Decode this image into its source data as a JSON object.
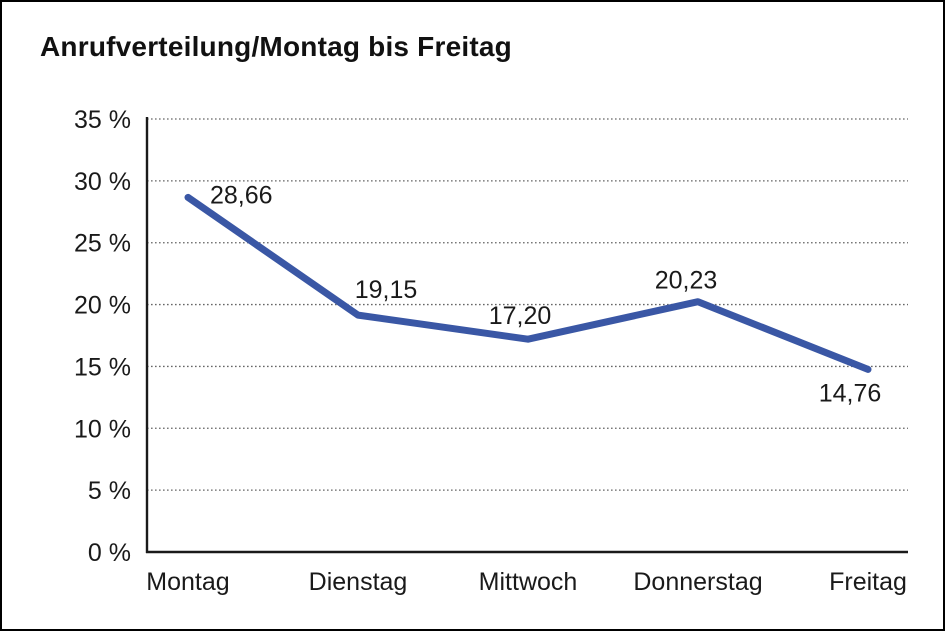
{
  "title": "Anrufverteilung/Montag bis Freitag",
  "colors": {
    "line": "#3A57A5",
    "axis": "#1a1a1a",
    "grid": "#666666",
    "background": "#ffffff",
    "border": "#000000",
    "text": "#1a1a1a"
  },
  "chart_data": {
    "type": "line",
    "title": "Anrufverteilung/Montag bis Freitag",
    "categories": [
      "Montag",
      "Dienstag",
      "Mittwoch",
      "Donnerstag",
      "Freitag"
    ],
    "values": [
      28.66,
      19.15,
      17.2,
      20.23,
      14.76
    ],
    "value_labels": [
      "28,66",
      "19,15",
      "17,20",
      "20,23",
      "14,76"
    ],
    "xlabel": "",
    "ylabel": "",
    "ylim": [
      0,
      35
    ],
    "ytick_step": 5,
    "ytick_labels": [
      "0 %",
      "5 %",
      "10 %",
      "15 %",
      "20 %",
      "25 %",
      "30 %",
      "35 %"
    ],
    "grid": "horizontal-dotted",
    "legend": "none"
  }
}
